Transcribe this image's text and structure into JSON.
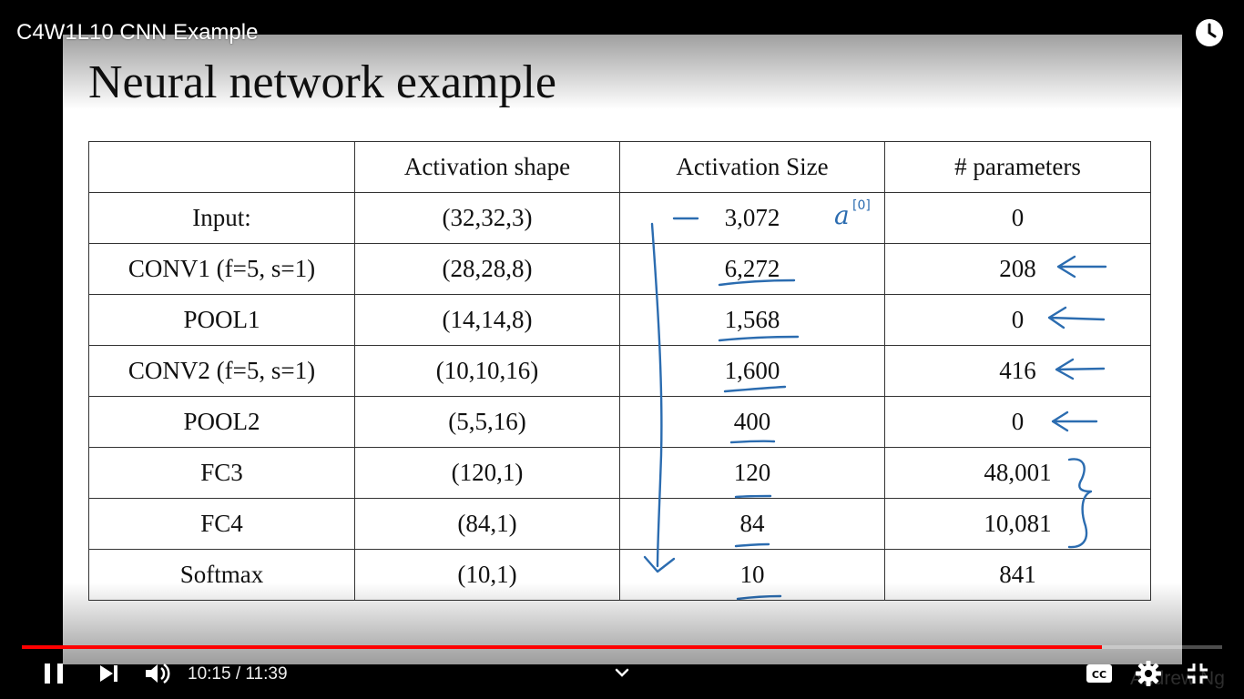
{
  "player": {
    "title": "C4W1L10 CNN Example",
    "time_current": "10:15",
    "time_separator": " / ",
    "time_total": "11:39",
    "progress_fraction": 0.9,
    "accent_color": "#ff0000",
    "icons": {
      "watch_later": "clock-icon",
      "pause": "pause-icon",
      "next": "next-icon",
      "volume": "volume-icon",
      "chapters": "chevron-down-icon",
      "captions": "cc-icon",
      "settings": "gear-icon",
      "fullscreen": "exit-fullscreen-icon"
    }
  },
  "slide": {
    "title": "Neural network example",
    "watermark": "Andrew Ng",
    "headers": [
      "",
      "Activation shape",
      "Activation Size",
      "# parameters"
    ],
    "rows": [
      {
        "layer": "Input:",
        "shape": "(32,32,3)",
        "size": "3,072",
        "params": "0"
      },
      {
        "layer": "CONV1 (f=5, s=1)",
        "shape": "(28,28,8)",
        "size": "6,272",
        "params": "208"
      },
      {
        "layer": "POOL1",
        "shape": "(14,14,8)",
        "size": "1,568",
        "params": "0"
      },
      {
        "layer": "CONV2  (f=5, s=1)",
        "shape": "(10,10,16)",
        "size": "1,600",
        "params": "416"
      },
      {
        "layer": "POOL2",
        "shape": "(5,5,16)",
        "size": "400",
        "params": "0"
      },
      {
        "layer": "FC3",
        "shape": "(120,1)",
        "size": "120",
        "params": "48,001"
      },
      {
        "layer": "FC4",
        "shape": "(84,1)",
        "size": "84",
        "params": "10,081"
      },
      {
        "layer": "Softmax",
        "shape": "(10,1)",
        "size": "10",
        "params": "841"
      }
    ],
    "annotation": {
      "label": "a",
      "superscript": "[0]",
      "ink_color": "#2b6cb0"
    }
  }
}
